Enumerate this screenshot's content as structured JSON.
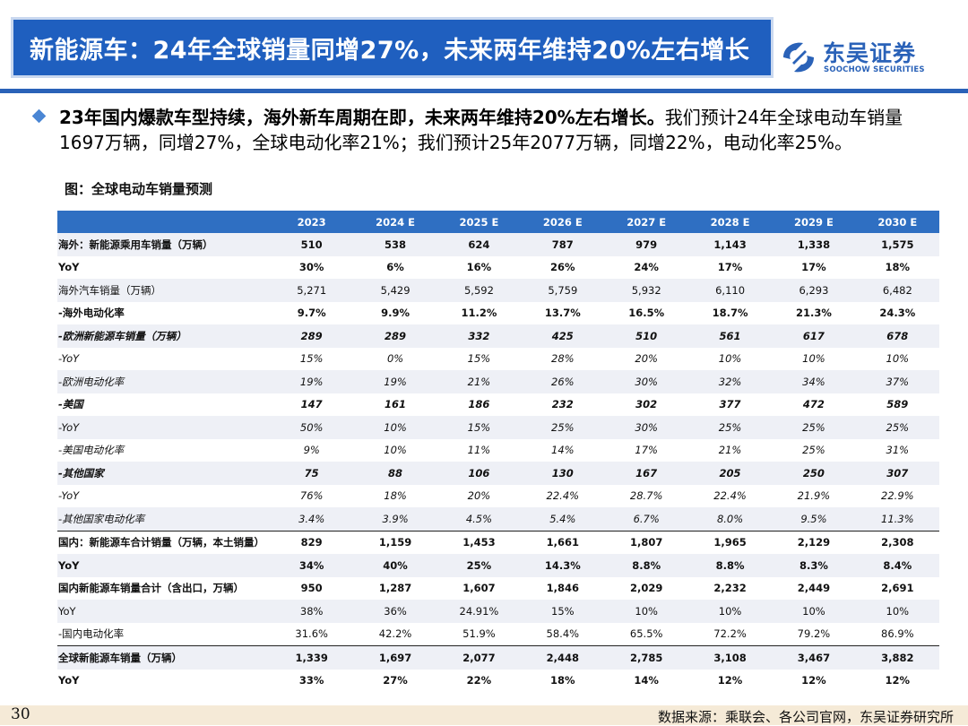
{
  "header": {
    "title": "新能源车：24年全球销量同增27%，未来两年维持20%左右增长",
    "logo_cn": "东吴证券",
    "logo_en": "SOOCHOW SECURITIES",
    "accent_color": "#1f5fbf"
  },
  "bullet": {
    "bold_text": "23年国内爆款车型持续，海外新车周期在即，未来两年维持20%左右增长。",
    "normal_text": "我们预计24年全球电动车销量1697万辆，同增27%，全球电动化率21%；我们预计25年2077万辆，同增22%，电动化率25%。"
  },
  "figure": {
    "caption": "图：全球电动车销量预测"
  },
  "table": {
    "header": [
      "",
      "2023",
      "2024 E",
      "2025 E",
      "2026 E",
      "2027 E",
      "2028 E",
      "2029 E",
      "2030 E"
    ],
    "rows": [
      {
        "style": "shade bold",
        "cells": [
          "海外：新能源乘用车销量（万辆）",
          "510",
          "538",
          "624",
          "787",
          "979",
          "1,143",
          "1,338",
          "1,575"
        ]
      },
      {
        "style": "bold",
        "cells": [
          "YoY",
          "30%",
          "6%",
          "16%",
          "26%",
          "24%",
          "17%",
          "17%",
          "18%"
        ]
      },
      {
        "style": "shade",
        "cells": [
          "海外汽车销量（万辆）",
          "5,271",
          "5,429",
          "5,592",
          "5,759",
          "5,932",
          "6,110",
          "6,293",
          "6,482"
        ]
      },
      {
        "style": "bold",
        "cells": [
          "-海外电动化率",
          "9.7%",
          "9.9%",
          "11.2%",
          "13.7%",
          "16.5%",
          "18.7%",
          "21.3%",
          "24.3%"
        ]
      },
      {
        "style": "shade bold it",
        "cells": [
          "-欧洲新能源车销量（万辆）",
          "289",
          "289",
          "332",
          "425",
          "510",
          "561",
          "617",
          "678"
        ]
      },
      {
        "style": "it",
        "cells": [
          "-YoY",
          "15%",
          "0%",
          "15%",
          "28%",
          "20%",
          "10%",
          "10%",
          "10%"
        ]
      },
      {
        "style": "shade it",
        "cells": [
          "-欧洲电动化率",
          "19%",
          "19%",
          "21%",
          "26%",
          "30%",
          "32%",
          "34%",
          "37%"
        ]
      },
      {
        "style": "bold it",
        "cells": [
          "-美国",
          "147",
          "161",
          "186",
          "232",
          "302",
          "377",
          "472",
          "589"
        ]
      },
      {
        "style": "shade it",
        "cells": [
          "-YoY",
          "50%",
          "10%",
          "15%",
          "25%",
          "30%",
          "25%",
          "25%",
          "25%"
        ]
      },
      {
        "style": "it",
        "cells": [
          "-美国电动化率",
          "9%",
          "10%",
          "11%",
          "14%",
          "17%",
          "21%",
          "25%",
          "31%"
        ]
      },
      {
        "style": "shade bold it",
        "cells": [
          "-其他国家",
          "75",
          "88",
          "106",
          "130",
          "167",
          "205",
          "250",
          "307"
        ]
      },
      {
        "style": "it",
        "cells": [
          "-YoY",
          "76%",
          "18%",
          "20%",
          "22.4%",
          "28.7%",
          "22.4%",
          "21.9%",
          "22.9%"
        ]
      },
      {
        "style": "shade it",
        "cells": [
          "-其他国家电动化率",
          "3.4%",
          "3.9%",
          "4.5%",
          "5.4%",
          "6.7%",
          "8.0%",
          "9.5%",
          "11.3%"
        ]
      },
      {
        "style": "bold sep",
        "cells": [
          "国内：新能源车合计销量（万辆，本土销量）",
          "829",
          "1,159",
          "1,453",
          "1,661",
          "1,807",
          "1,965",
          "2,129",
          "2,308"
        ]
      },
      {
        "style": "shade bold",
        "cells": [
          "YoY",
          "34%",
          "40%",
          "25%",
          "14.3%",
          "8.8%",
          "8.8%",
          "8.3%",
          "8.4%"
        ]
      },
      {
        "style": "bold",
        "cells": [
          "国内新能源车销量合计（含出口，万辆）",
          "950",
          "1,287",
          "1,607",
          "1,846",
          "2,029",
          "2,232",
          "2,449",
          "2,691"
        ]
      },
      {
        "style": "shade",
        "cells": [
          "YoY",
          "38%",
          "36%",
          "24.91%",
          "15%",
          "10%",
          "10%",
          "10%",
          "10%"
        ]
      },
      {
        "style": "",
        "cells": [
          "-国内电动化率",
          "31.6%",
          "42.2%",
          "51.9%",
          "58.4%",
          "65.5%",
          "72.2%",
          "79.2%",
          "86.9%"
        ]
      },
      {
        "style": "shade bold sep",
        "cells": [
          "全球新能源车销量（万辆）",
          "1,339",
          "1,697",
          "2,077",
          "2,448",
          "2,785",
          "3,108",
          "3,467",
          "3,882"
        ]
      },
      {
        "style": "bold",
        "cells": [
          "YoY",
          "33%",
          "27%",
          "22%",
          "18%",
          "14%",
          "12%",
          "12%",
          "12%"
        ]
      }
    ]
  },
  "footer": {
    "page_number": "30",
    "source": "数据来源：乘联会、各公司官网，东吴证券研究所"
  }
}
